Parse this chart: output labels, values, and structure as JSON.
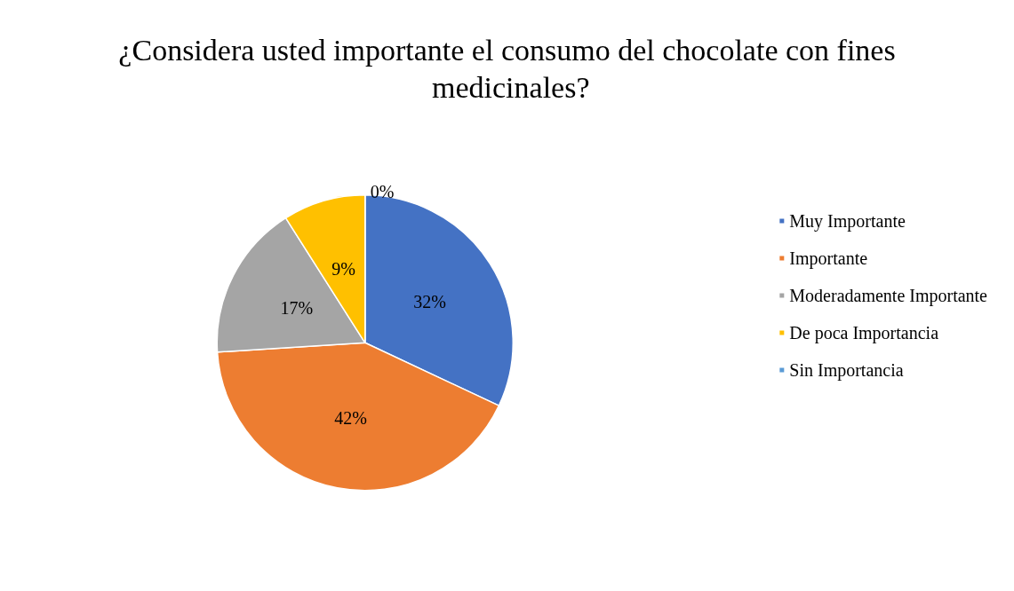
{
  "chart_data": {
    "type": "pie",
    "title": "¿Considera usted importante el consumo del chocolate con fines medicinales?",
    "categories": [
      "Muy Importante",
      "Importante",
      "Moderadamente Importante",
      "De poca Importancia",
      "Sin Importancia"
    ],
    "values": [
      32,
      42,
      17,
      9,
      0
    ],
    "colors": [
      "#4472c4",
      "#ed7d31",
      "#a5a5a5",
      "#ffc000",
      "#5b9bd5"
    ],
    "value_labels": [
      "32%",
      "42%",
      "17%",
      "9%",
      "0%"
    ],
    "legend": "right"
  }
}
